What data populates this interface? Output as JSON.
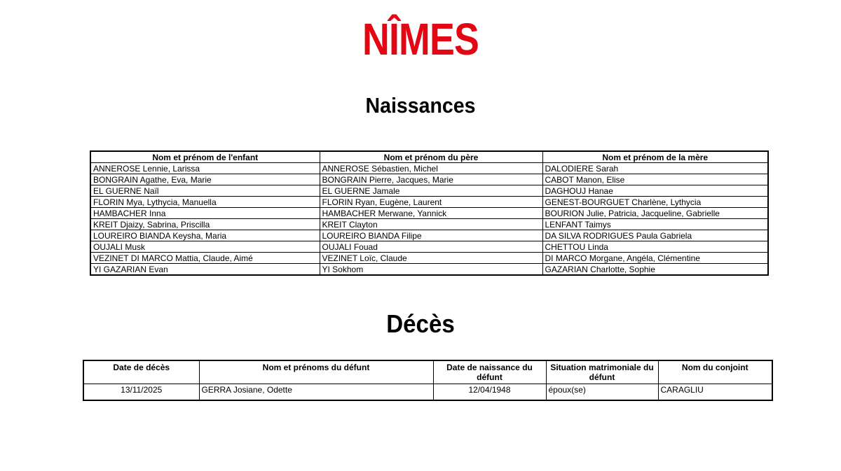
{
  "page": {
    "logo": "NÎMES",
    "logo_color": "#e30613"
  },
  "naissances": {
    "title": "Naissances",
    "columns": [
      "Nom et prénom de l'enfant",
      "Nom et prénom du père",
      "Nom et prénom de la mère"
    ],
    "rows": [
      [
        "ANNEROSE Lennie, Larissa",
        "ANNEROSE Sébastien, Michel",
        "DALODIERE Sarah"
      ],
      [
        "BONGRAIN Agathe, Eva, Marie",
        "BONGRAIN Pierre, Jacques, Marie",
        "CABOT Manon, Elise"
      ],
      [
        "EL GUERNE Naïl",
        "EL GUERNE Jamale",
        "DAGHOUJ Hanae"
      ],
      [
        "FLORIN Mya, Lythycia, Manuella",
        "FLORIN Ryan, Eugène, Laurent",
        "GENEST-BOURGUET Charlène, Lythycia"
      ],
      [
        "HAMBACHER Inna",
        "HAMBACHER Merwane, Yannick",
        "BOURION Julie, Patricia, Jacqueline, Gabrielle"
      ],
      [
        "KREIT Djaizy, Sabrina, Priscilla",
        "KREIT Clayton",
        "LENFANT Taimys"
      ],
      [
        "LOUREIRO BIANDA Keysha, Maria",
        "LOUREIRO BIANDA Filipe",
        "DA SILVA RODRIGUES Paula Gabriela"
      ],
      [
        "OUJALI Musk",
        "OUJALI Fouad",
        "CHETTOU Linda"
      ],
      [
        "VEZINET DI MARCO Mattia, Claude, Aimé",
        "VEZINET Loïc, Claude",
        "DI MARCO Morgane, Angéla, Clémentine"
      ],
      [
        "YI GAZARIAN Evan",
        "YI Sokhom",
        "GAZARIAN Charlotte, Sophie"
      ]
    ]
  },
  "deces": {
    "title": "Décès",
    "columns": [
      "Date de décès",
      "Nom et prénoms du défunt",
      "Date de naissance du défunt",
      "Situation matrimoniale du défunt",
      "Nom du conjoint"
    ],
    "rows": [
      [
        "13/11/2025",
        "GERRA Josiane, Odette",
        "12/04/1948",
        "époux(se)",
        "CARAGLIU"
      ]
    ]
  }
}
